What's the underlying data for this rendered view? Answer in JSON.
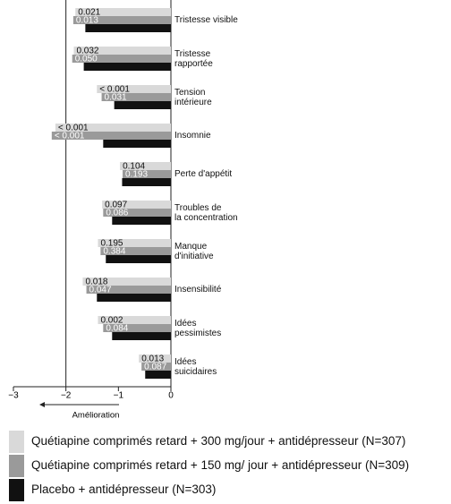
{
  "chart_data": {
    "type": "hbar",
    "categories": [
      "Tristesse visible",
      "Tristesse\nrapportée",
      "Tension\nintérieure",
      "Insomnie",
      "Perte d'appétit",
      "Troubles de\nla concentration",
      "Manque\nd'initiative",
      "Insensibilité",
      "Idées\npessimistes",
      "Idées\nsuicidaires"
    ],
    "series": [
      {
        "name": "Quétiapine comprimés retard + 300 mg/jour + antidépresseur (N=307)",
        "color": "#d9d9d9",
        "values": [
          -1.82,
          -1.85,
          -1.41,
          -2.2,
          -0.97,
          -1.31,
          -1.39,
          -1.68,
          -1.39,
          -0.61
        ],
        "p_values": [
          "0.021",
          "0.032",
          "< 0.001",
          "< 0.001",
          "0.104",
          "0.097",
          "0.195",
          "0.018",
          "0.002",
          "0.013"
        ]
      },
      {
        "name": "Quétiapine comprimés retard + 150 mg/ jour + antidépresseur (N=309)",
        "color": "#9a9a9a",
        "values": [
          -1.86,
          -1.88,
          -1.32,
          -2.27,
          -0.92,
          -1.29,
          -1.34,
          -1.61,
          -1.29,
          -0.56
        ],
        "p_values": [
          "0.013",
          "0.050",
          "0.031",
          "< 0.001",
          "0.193",
          "0.086",
          "0.384",
          "0.047",
          "0.084",
          "0.087"
        ]
      },
      {
        "name": "Placebo + antidépresseur (N=303)",
        "color": "#111111",
        "values": [
          -1.63,
          -1.66,
          -1.08,
          -1.29,
          -0.93,
          -1.12,
          -1.24,
          -1.41,
          -1.12,
          -0.49
        ]
      }
    ],
    "xlim": [
      -3,
      0
    ],
    "xticks": [
      {
        "value": -3,
        "label": "−3"
      },
      {
        "value": -2,
        "label": "−2"
      },
      {
        "value": -1,
        "label": "−1"
      },
      0
    ],
    "reference_line": -2,
    "xlabel": "Amélioration"
  }
}
